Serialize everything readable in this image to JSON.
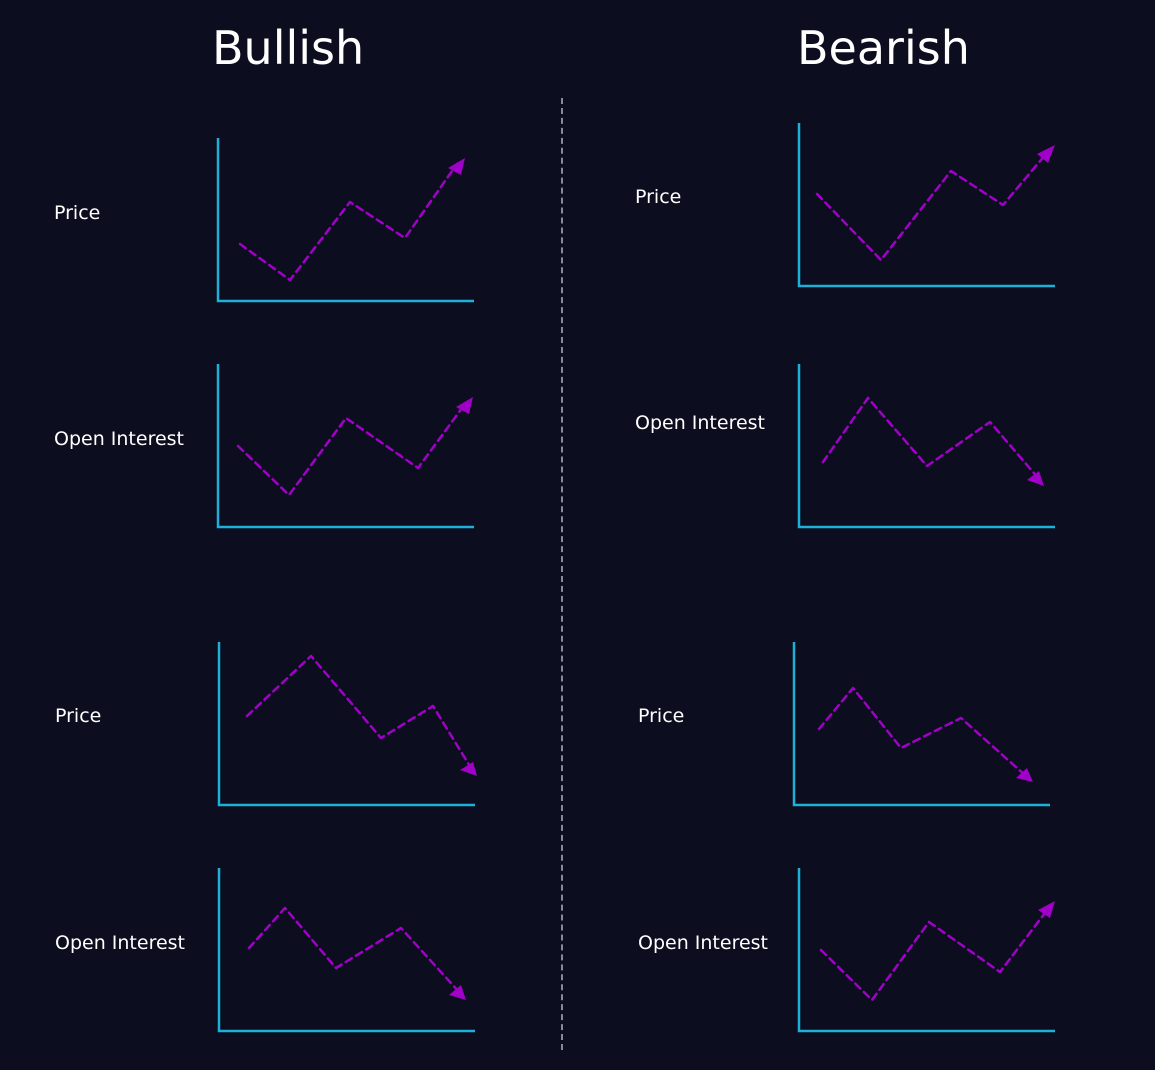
{
  "headings": {
    "bullish": "Bullish",
    "bearish": "Bearish"
  },
  "colors": {
    "background": "#0c0d1f",
    "axis": "#1fb0d8",
    "trend_line": "#a000c8",
    "text": "#ffffff",
    "divider": "#8a8a96"
  },
  "rows": [
    {
      "id": "bullish-price-up",
      "label": "Price",
      "direction": "up"
    },
    {
      "id": "bullish-oi-up",
      "label": "Open Interest",
      "direction": "up"
    },
    {
      "id": "bullish-price-down",
      "label": "Price",
      "direction": "down"
    },
    {
      "id": "bullish-oi-down",
      "label": "Open Interest",
      "direction": "down"
    },
    {
      "id": "bearish-price-up",
      "label": "Price",
      "direction": "up"
    },
    {
      "id": "bearish-oi-down",
      "label": "Open Interest",
      "direction": "down"
    },
    {
      "id": "bearish-price-down",
      "label": "Price",
      "direction": "down"
    },
    {
      "id": "bearish-oi-up",
      "label": "Open Interest",
      "direction": "up"
    }
  ]
}
